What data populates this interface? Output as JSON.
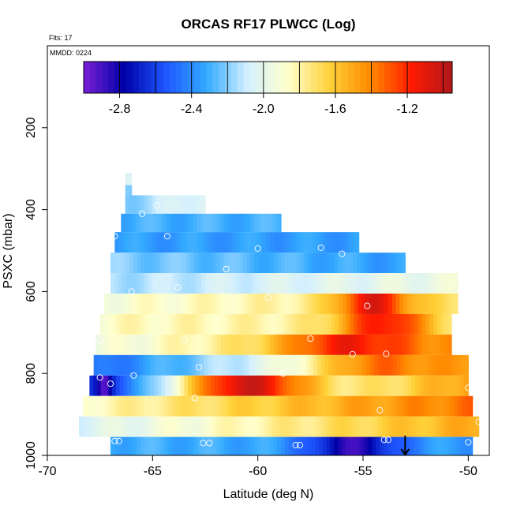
{
  "chart_data": {
    "type": "heatmap",
    "title": "ORCAS RF17 PLWCC (Log)",
    "subtitle": "Flts: 17",
    "annotation": "MMDD: 0224",
    "xlabel": "Latitude (deg N)",
    "ylabel": "PSXC (mbar)",
    "xlim": [
      -70,
      -49
    ],
    "ylim": [
      1000,
      0
    ],
    "xticks": [
      "-70",
      "-65",
      "-60",
      "-55",
      "-50"
    ],
    "xtick_values": [
      -70,
      -65,
      -60,
      -55,
      -50
    ],
    "yticks": [
      "200",
      "400",
      "600",
      "800",
      "1000"
    ],
    "ytick_values": [
      200,
      400,
      600,
      800,
      1000
    ],
    "colorbar": {
      "range": [
        -3.0,
        -0.95
      ],
      "tick_labels": [
        "-2.8",
        "-2.4",
        "-2.0",
        "-1.6",
        "-1.2"
      ],
      "tick_values": [
        -2.8,
        -2.4,
        -2.0,
        -1.6,
        -1.2
      ],
      "colors": [
        "#7a1fd6",
        "#0000a8",
        "#1e56ff",
        "#33aaff",
        "#d4f0ff",
        "#ffffcc",
        "#ffd23a",
        "#ff8a00",
        "#ff1a00",
        "#b0181b"
      ]
    },
    "layers": [
      {
        "p_top": 310,
        "p_bot": 325,
        "x0": -66.3,
        "x1": -66.0,
        "c0": -2.0,
        "c1": -2.0,
        "features": []
      },
      {
        "p_top": 325,
        "p_bot": 340,
        "x0": -66.3,
        "x1": -66.0,
        "c0": -2.05,
        "c1": -2.05,
        "features": []
      },
      {
        "p_top": 340,
        "p_bot": 365,
        "x0": -66.3,
        "x1": -66.0,
        "c0": -2.25,
        "c1": -2.25,
        "features": []
      },
      {
        "p_top": 365,
        "p_bot": 410,
        "x0": -66.3,
        "x1": -62.5,
        "c0": -2.2,
        "c1": -2.0,
        "features": []
      },
      {
        "p_top": 410,
        "p_bot": 455,
        "x0": -66.5,
        "x1": -58.9,
        "c0": -2.3,
        "c1": -2.3,
        "features": []
      },
      {
        "p_top": 455,
        "p_bot": 505,
        "x0": -66.8,
        "x1": -55.2,
        "c0": -2.35,
        "c1": -2.35,
        "features": []
      },
      {
        "p_top": 505,
        "p_bot": 555,
        "x0": -67.0,
        "x1": -53.0,
        "c0": -2.2,
        "c1": -2.35,
        "features": []
      },
      {
        "p_top": 555,
        "p_bot": 605,
        "x0": -67.0,
        "x1": -50.5,
        "c0": -2.15,
        "c1": -1.95,
        "features": []
      },
      {
        "p_top": 605,
        "p_bot": 655,
        "x0": -67.3,
        "x1": -50.5,
        "c0": -1.9,
        "c1": -1.7,
        "features": [
          {
            "center": -54.5,
            "width": 1.8,
            "value": -1.1
          }
        ]
      },
      {
        "p_top": 655,
        "p_bot": 705,
        "x0": -67.5,
        "x1": -50.8,
        "c0": -1.85,
        "c1": -1.75,
        "features": [
          {
            "center": -54.0,
            "width": 2.2,
            "value": -1.15
          }
        ]
      },
      {
        "p_top": 705,
        "p_bot": 755,
        "x0": -67.7,
        "x1": -50.8,
        "c0": -1.95,
        "c1": -1.45,
        "features": [
          {
            "center": -55.5,
            "width": 3.2,
            "value": -1.15
          }
        ]
      },
      {
        "p_top": 755,
        "p_bot": 805,
        "x0": -67.8,
        "x1": -50.0,
        "c0": -2.5,
        "c1": -1.45,
        "features": [
          {
            "center": -54.0,
            "width": 2.8,
            "value": -1.35
          }
        ]
      },
      {
        "p_top": 805,
        "p_bot": 855,
        "x0": -68.0,
        "x1": -50.0,
        "c0": -2.7,
        "c1": -1.45,
        "features": [
          {
            "center": -67.3,
            "width": 0.35,
            "value": -2.95
          },
          {
            "center": -60.5,
            "width": 3.5,
            "value": -1.05
          }
        ]
      },
      {
        "p_top": 855,
        "p_bot": 905,
        "x0": -68.3,
        "x1": -49.8,
        "c0": -1.85,
        "c1": -1.35,
        "features": []
      },
      {
        "p_top": 905,
        "p_bot": 955,
        "x0": -68.5,
        "x1": -49.5,
        "c0": -2.05,
        "c1": -1.5,
        "features": []
      },
      {
        "p_top": 955,
        "p_bot": 1000,
        "x0": -67.0,
        "x1": -49.8,
        "c0": -2.3,
        "c1": -2.35,
        "features": [
          {
            "center": -55.5,
            "width": 2.2,
            "value": -2.85
          }
        ]
      }
    ],
    "markers": [
      {
        "lat": -64.8,
        "p": 390
      },
      {
        "lat": -65.5,
        "p": 410
      },
      {
        "lat": -64.3,
        "p": 465
      },
      {
        "lat": -66.8,
        "p": 465
      },
      {
        "lat": -60.0,
        "p": 495
      },
      {
        "lat": -57.0,
        "p": 493
      },
      {
        "lat": -56.0,
        "p": 508
      },
      {
        "lat": -61.5,
        "p": 545
      },
      {
        "lat": -63.8,
        "p": 590
      },
      {
        "lat": -66.0,
        "p": 600
      },
      {
        "lat": -59.5,
        "p": 615
      },
      {
        "lat": -54.8,
        "p": 635
      },
      {
        "lat": -50.0,
        "p": 612
      },
      {
        "lat": -57.5,
        "p": 715
      },
      {
        "lat": -63.5,
        "p": 718
      },
      {
        "lat": -67.5,
        "p": 720
      },
      {
        "lat": -55.5,
        "p": 753
      },
      {
        "lat": -53.9,
        "p": 752
      },
      {
        "lat": -62.8,
        "p": 785
      },
      {
        "lat": -58.8,
        "p": 800
      },
      {
        "lat": -65.9,
        "p": 805
      },
      {
        "lat": -67.5,
        "p": 810
      },
      {
        "lat": -67.0,
        "p": 825
      },
      {
        "lat": -63.0,
        "p": 860
      },
      {
        "lat": -50.0,
        "p": 835
      },
      {
        "lat": -54.2,
        "p": 890
      },
      {
        "lat": -68.5,
        "p": 960
      },
      {
        "lat": -66.8,
        "p": 965
      },
      {
        "lat": -66.6,
        "p": 965
      },
      {
        "lat": -62.6,
        "p": 970
      },
      {
        "lat": -62.3,
        "p": 970
      },
      {
        "lat": -58.2,
        "p": 975
      },
      {
        "lat": -58.0,
        "p": 975
      },
      {
        "lat": -54.0,
        "p": 962
      },
      {
        "lat": -53.8,
        "p": 962
      },
      {
        "lat": -50.0,
        "p": 968
      },
      {
        "lat": -49.5,
        "p": 918
      }
    ],
    "arrow": {
      "lat": -53.0,
      "p_from": 952,
      "p_to": 1000
    }
  }
}
